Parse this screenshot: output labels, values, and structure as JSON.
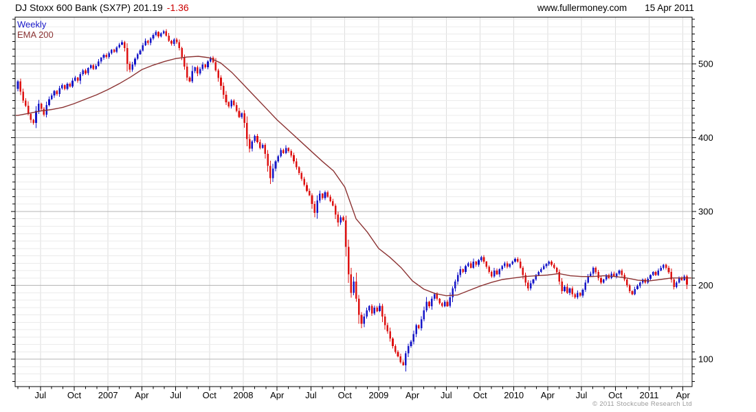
{
  "header": {
    "title": "DJ Stoxx 600 Bank (SX7P) 201.19",
    "change": "-1.36",
    "website": "www.fullermoney.com",
    "date": "15 Apr 2011"
  },
  "legend": {
    "series1": "Weekly",
    "series2": "EMA 200"
  },
  "footer": {
    "copyright": "© 2011 Stockcube Research Ltd"
  },
  "chart_data": {
    "type": "candlestick",
    "title": "DJ Stoxx 600 Bank (SX7P)",
    "frequency": "weekly",
    "start": "May 2006",
    "end": "15 Apr 2011",
    "last_price": 201.19,
    "change": -1.36,
    "legend_position": "top-left",
    "grid": true,
    "y_axis": {
      "side": "right",
      "min": 63,
      "max": 563,
      "major_ticks": [
        100,
        200,
        300,
        400,
        500
      ],
      "minor_step": 10,
      "grid_min": 70,
      "grid_max": 560
    },
    "x_axis": {
      "minor_tick": "monthly",
      "tick_labels": [
        "Jul",
        "Oct",
        "2007",
        "Apr",
        "Jul",
        "Oct",
        "2008",
        "Apr",
        "Jul",
        "Oct",
        "2009",
        "Apr",
        "Jul",
        "Oct",
        "2010",
        "Apr",
        "Jul",
        "Oct",
        "2011",
        "Apr"
      ],
      "tick_month_offsets": [
        2,
        5,
        8,
        11,
        14,
        17,
        20,
        23,
        26,
        29,
        32,
        35,
        38,
        41,
        44,
        47,
        50,
        53,
        56,
        59
      ],
      "weeks_per_month": 4.33
    },
    "colors": {
      "up": "#1616c8",
      "down": "#de1212",
      "ema": "#8b3232",
      "grid_minor": "#ebebeb",
      "grid_vert": "#dedede",
      "grid_major": "#b5b5b5",
      "change_text": "#cc0000",
      "axis": "#000000",
      "copyright": "#9a9a9a"
    },
    "series": [
      {
        "name": "Weekly",
        "type": "candles",
        "first_open": 466,
        "closes": [
          476,
          462,
          450,
          443,
          432,
          424,
          420,
          436,
          446,
          439,
          431,
          444,
          452,
          457,
          463,
          459,
          467,
          471,
          466,
          473,
          469,
          477,
          481,
          477,
          486,
          491,
          487,
          494,
          498,
          493,
          497,
          503,
          508,
          512,
          509,
          514,
          519,
          516,
          522,
          526,
          529,
          521,
          500,
          492,
          499,
          507,
          513,
          518,
          525,
          531,
          528,
          534,
          539,
          543,
          537,
          541,
          544,
          538,
          531,
          527,
          533,
          529,
          521,
          509,
          496,
          481,
          476,
          490,
          495,
          487,
          493,
          499,
          495,
          503,
          508,
          502,
          491,
          481,
          470,
          458,
          448,
          442,
          450,
          444,
          436,
          428,
          433,
          420,
          398,
          385,
          395,
          402,
          394,
          386,
          390,
          378,
          362,
          345,
          358,
          368,
          375,
          383,
          379,
          386,
          382,
          376,
          368,
          360,
          352,
          344,
          336,
          328,
          322,
          310,
          298,
          315,
          324,
          318,
          326,
          320,
          314,
          308,
          296,
          285,
          292,
          288,
          252,
          215,
          190,
          205,
          182,
          160,
          148,
          158,
          166,
          172,
          162,
          170,
          165,
          172,
          158,
          146,
          138,
          128,
          118,
          110,
          104,
          96,
          92,
          108,
          118,
          124,
          134,
          146,
          142,
          154,
          166,
          178,
          172,
          182,
          188,
          182,
          176,
          172,
          178,
          172,
          184,
          196,
          205,
          214,
          222,
          218,
          226,
          230,
          224,
          232,
          228,
          234,
          238,
          232,
          225,
          218,
          212,
          220,
          215,
          222,
          226,
          230,
          225,
          229,
          232,
          236,
          232,
          224,
          214,
          204,
          196,
          203,
          208,
          214,
          218,
          222,
          226,
          229,
          232,
          228,
          224,
          218,
          205,
          192,
          198,
          190,
          196,
          188,
          184,
          190,
          186,
          194,
          204,
          212,
          216,
          224,
          218,
          210,
          204,
          208,
          214,
          210,
          216,
          212,
          216,
          220,
          214,
          208,
          200,
          192,
          188,
          195,
          199,
          204,
          208,
          204,
          209,
          214,
          218,
          214,
          220,
          224,
          228,
          224,
          218,
          208,
          198,
          204,
          210,
          207,
          212,
          201
        ]
      },
      {
        "name": "EMA 200",
        "type": "line",
        "note": "values at each month start, May 2006 through Apr 2011 end",
        "monthly_values": [
          430,
          433,
          436,
          438,
          441,
          446,
          452,
          458,
          465,
          473,
          482,
          492,
          498,
          503,
          507,
          509,
          510,
          508,
          501,
          488,
          472,
          456,
          440,
          424,
          410,
          396,
          382,
          368,
          355,
          333,
          290,
          272,
          250,
          238,
          224,
          206,
          195,
          189,
          186,
          187,
          193,
          199,
          204,
          208,
          210,
          212,
          213,
          214,
          216,
          213,
          212,
          212,
          213,
          212,
          210,
          207,
          206,
          208,
          210,
          210,
          210
        ]
      }
    ]
  }
}
